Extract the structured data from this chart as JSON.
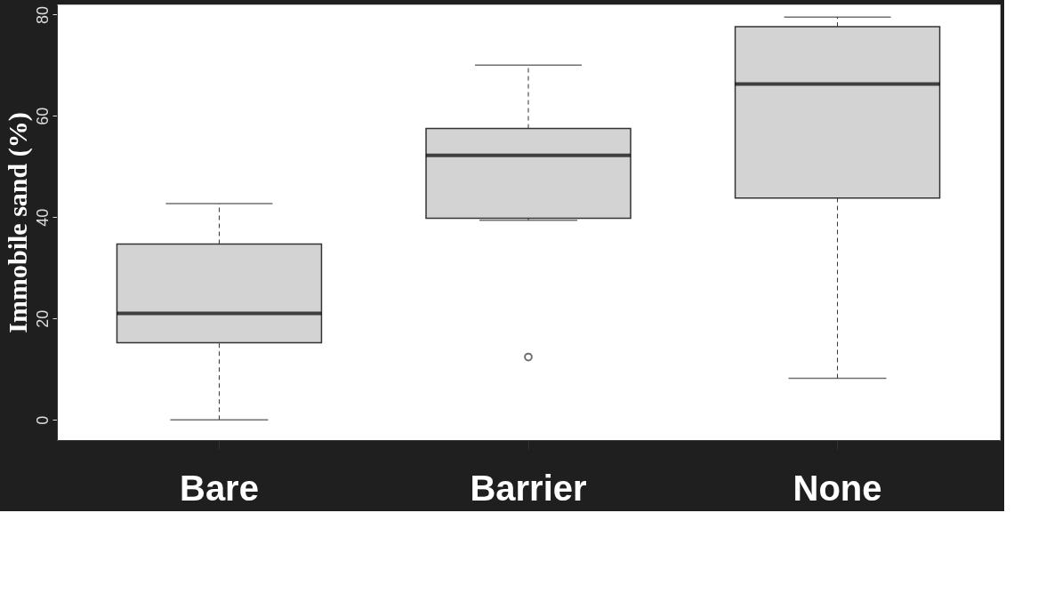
{
  "chart_data": {
    "type": "box",
    "ylabel": "Immobile sand (%)",
    "categories": [
      "Bare",
      "Barrier",
      "None"
    ],
    "boxes": [
      {
        "low": 0,
        "q1": 15.2,
        "median": 21,
        "q3": 34.7,
        "high": 42.7
      },
      {
        "low": 39.4,
        "q1": 39.8,
        "median": 52.2,
        "q3": 57.5,
        "high": 70,
        "outliers": [
          12.4
        ]
      },
      {
        "low": 8.2,
        "q1": 43.8,
        "median": 66.3,
        "q3": 77.6,
        "high": 79.5
      }
    ],
    "color": "#d3d3d3",
    "ylim": [
      -4,
      82
    ],
    "yticks": [
      0,
      20,
      40,
      60,
      80
    ],
    "grid": false
  }
}
